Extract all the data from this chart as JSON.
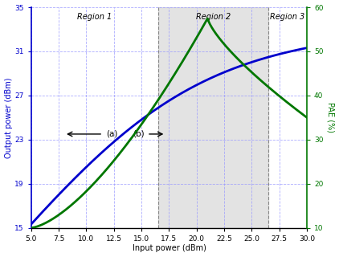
{
  "x_min": 5,
  "x_max": 30,
  "y_left_min": 15,
  "y_left_max": 35,
  "y_right_min": 10,
  "y_right_max": 60,
  "x_ticks": [
    5,
    7.5,
    10,
    12.5,
    15,
    17.5,
    20,
    22.5,
    25,
    27.5,
    30
  ],
  "y_left_ticks": [
    15,
    19,
    23,
    27,
    31,
    35
  ],
  "y_right_ticks": [
    10,
    20,
    30,
    40,
    50,
    60
  ],
  "xlabel": "Input power (dBm)",
  "ylabel_left": "Output power (dBm)",
  "ylabel_right": "PAE (%)",
  "region1_label": "Region 1",
  "region2_label": "Region 2",
  "region3_label": "Region 3",
  "label_a": "(a)",
  "label_b": "(b)",
  "shaded_x_start": 16.5,
  "shaded_x_end": 26.5,
  "blue_color": "#0000cc",
  "green_color": "#007700",
  "shade_color": "#cccccc",
  "grid_color": "#9999ff",
  "bg_color": "#ffffff"
}
